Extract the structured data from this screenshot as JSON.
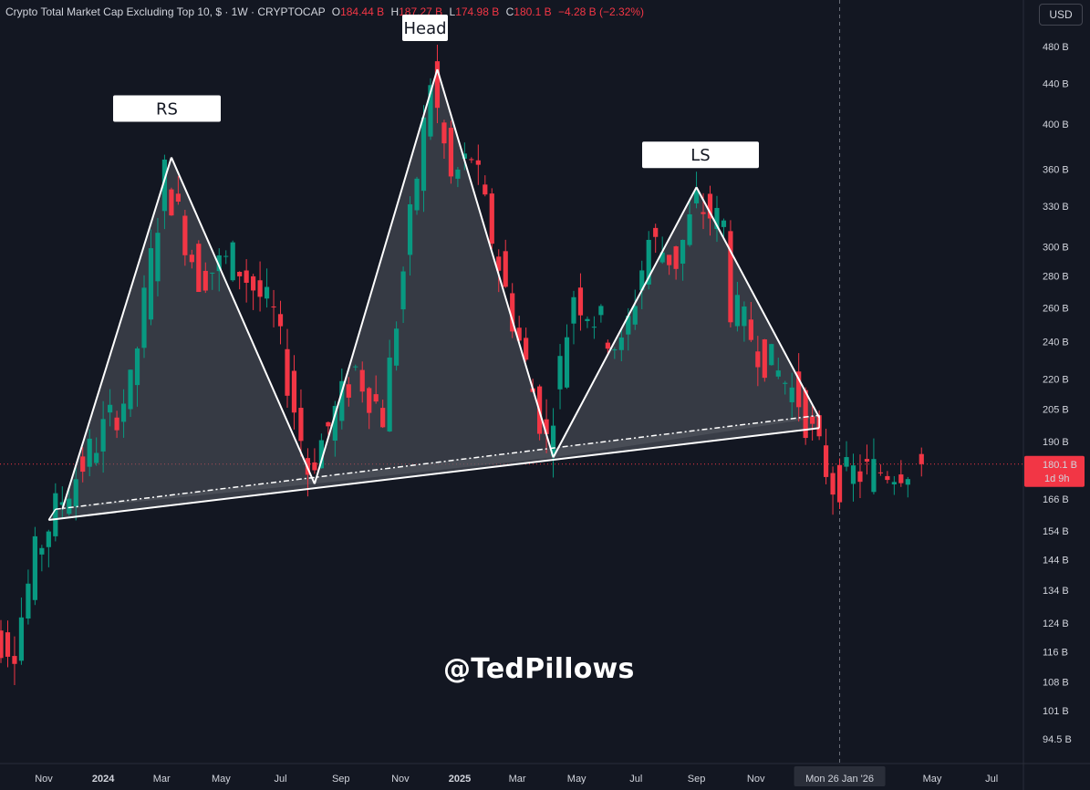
{
  "header": {
    "title": "Crypto Total Market Cap Excluding Top 10, $ · 1W · CRYPTOCAP",
    "open_label": "O",
    "open": "184.44 B",
    "high_label": "H",
    "high": "187.27 B",
    "low_label": "L",
    "low": "174.98 B",
    "close_label": "C",
    "close": "180.1 B",
    "change": "−4.28 B (−2.32%)"
  },
  "currency_button": "USD",
  "watermark": "@TedPillows",
  "price_tag": {
    "value": "180.1 B",
    "countdown": "1d 9h"
  },
  "crosshair_label": "Mon 26 Jan '26",
  "colors": {
    "up": "#089981",
    "down": "#f23645",
    "background": "#131722",
    "pattern_fill": "#5a5d66",
    "line": "#ffffff"
  },
  "annotations": [
    "RS",
    "Head",
    "LS"
  ],
  "chart_data": {
    "type": "candlestick",
    "title": "Crypto Total Market Cap Excluding Top 10, $ · 1W · CRYPTOCAP",
    "y_scale": "log",
    "ylim": [
      90,
      500
    ],
    "y_ticks": [
      "480 B",
      "440 B",
      "400 B",
      "360 B",
      "330 B",
      "300 B",
      "280 B",
      "260 B",
      "240 B",
      "220 B",
      "205 B",
      "190 B",
      "166 B",
      "154 B",
      "144 B",
      "134 B",
      "124 B",
      "116 B",
      "108 B",
      "101 B",
      "94.5 B"
    ],
    "y_tick_values": [
      480,
      440,
      400,
      360,
      330,
      300,
      280,
      260,
      240,
      220,
      205,
      190,
      166,
      154,
      144,
      134,
      124,
      116,
      108,
      101,
      94.5
    ],
    "x_ticks": [
      "Nov",
      "2024",
      "Mar",
      "May",
      "Jul",
      "Sep",
      "Nov",
      "2025",
      "Mar",
      "May",
      "Jul",
      "Sep",
      "Nov",
      "May",
      "Jul"
    ],
    "x_range": [
      "2023-10-01",
      "2026-07-15"
    ],
    "x_tick_dates": [
      "2023-11-01",
      "2024-01-01",
      "2024-03-01",
      "2024-05-01",
      "2024-07-01",
      "2024-09-01",
      "2024-11-01",
      "2025-01-01",
      "2025-03-01",
      "2025-05-01",
      "2025-07-01",
      "2025-09-01",
      "2025-11-01",
      "2026-05-01",
      "2026-07-01"
    ],
    "crosshair_date": "2026-01-26",
    "last_price": 180.1,
    "pattern": {
      "name": "Head and Shoulders",
      "points": [
        {
          "label": "",
          "date": "2023-11-20",
          "value": 162
        },
        {
          "label": "RS",
          "date": "2024-03-11",
          "value": 370
        },
        {
          "label": "",
          "date": "2024-08-05",
          "value": 172
        },
        {
          "label": "Head",
          "date": "2024-12-09",
          "value": 455
        },
        {
          "label": "",
          "date": "2025-04-07",
          "value": 183
        },
        {
          "label": "LS",
          "date": "2025-09-01",
          "value": 345
        },
        {
          "label": "",
          "date": "2026-01-05",
          "value": 201
        }
      ],
      "neckline": {
        "start": {
          "date": "2023-11-06",
          "value": 158
        },
        "end": {
          "date": "2026-01-05",
          "value": 196
        }
      },
      "neckline_dashed": {
        "start": {
          "date": "2023-11-13",
          "value": 162
        },
        "end": {
          "date": "2026-01-05",
          "value": 202
        }
      }
    },
    "candle_pivots": [
      [
        "2023-08-28",
        122
      ],
      [
        "2023-10-09",
        118
      ],
      [
        "2023-10-30",
        145
      ],
      [
        "2023-11-20",
        162
      ],
      [
        "2024-01-08",
        195
      ],
      [
        "2024-02-05",
        215
      ],
      [
        "2024-03-11",
        355
      ],
      [
        "2024-04-15",
        280
      ],
      [
        "2024-05-20",
        292
      ],
      [
        "2024-07-01",
        255
      ],
      [
        "2024-08-05",
        178
      ],
      [
        "2024-08-19",
        190
      ],
      [
        "2024-09-23",
        225
      ],
      [
        "2024-10-21",
        202
      ],
      [
        "2024-12-09",
        445
      ],
      [
        "2024-12-30",
        350
      ],
      [
        "2025-01-20",
        372
      ],
      [
        "2025-02-24",
        270
      ],
      [
        "2025-04-07",
        190
      ],
      [
        "2025-05-05",
        270
      ],
      [
        "2025-06-02",
        250
      ],
      [
        "2025-06-23",
        235
      ],
      [
        "2025-07-21",
        305
      ],
      [
        "2025-08-18",
        290
      ],
      [
        "2025-09-08",
        332
      ],
      [
        "2025-10-06",
        315
      ],
      [
        "2025-10-13",
        262
      ],
      [
        "2025-11-17",
        232
      ],
      [
        "2025-12-22",
        210
      ],
      [
        "2026-01-12",
        185
      ],
      [
        "2026-01-26",
        172
      ],
      [
        "2026-02-16",
        176
      ],
      [
        "2026-03-23",
        178
      ],
      [
        "2026-04-13",
        180
      ]
    ]
  }
}
